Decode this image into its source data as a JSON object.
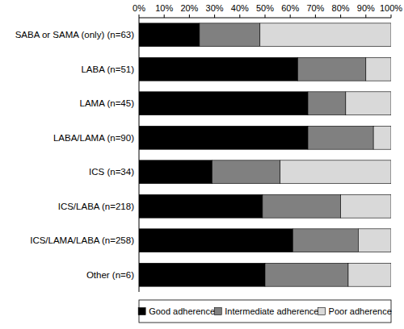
{
  "chart_data": {
    "type": "bar",
    "orientation": "horizontal",
    "stacked": true,
    "categories": [
      "SABA or SAMA (only) (n=63)",
      "LABA (n=51)",
      "LAMA (n=45)",
      "LABA/LAMA (n=90)",
      "ICS (n=34)",
      "ICS/LABA (n=218)",
      "ICS/LAMA/LABA (n=258)",
      "Other (n=6)"
    ],
    "series": [
      {
        "name": "Good adherence",
        "color": "#000000",
        "values": [
          24,
          63,
          67,
          67,
          29,
          49,
          61,
          50
        ]
      },
      {
        "name": "Intermediate adherence",
        "color": "#808080",
        "values": [
          24,
          27,
          15,
          26,
          27,
          31,
          26,
          33
        ]
      },
      {
        "name": "Poor adherence",
        "color": "#d9d9d9",
        "values": [
          52,
          10,
          18,
          7,
          44,
          20,
          13,
          17
        ]
      }
    ],
    "xlim": [
      0,
      100
    ],
    "xticks": [
      {
        "value": 0,
        "label": "0%"
      },
      {
        "value": 10,
        "label": "10%"
      },
      {
        "value": 20,
        "label": "20%"
      },
      {
        "value": 30,
        "label": "30%"
      },
      {
        "value": 40,
        "label": "40%"
      },
      {
        "value": 50,
        "label": "50%"
      },
      {
        "value": 60,
        "label": "60%"
      },
      {
        "value": 70,
        "label": "70%"
      },
      {
        "value": 80,
        "label": "80%"
      },
      {
        "value": 90,
        "label": "90%"
      },
      {
        "value": 100,
        "label": "100%"
      }
    ],
    "grid": false,
    "legend": "bottom"
  }
}
